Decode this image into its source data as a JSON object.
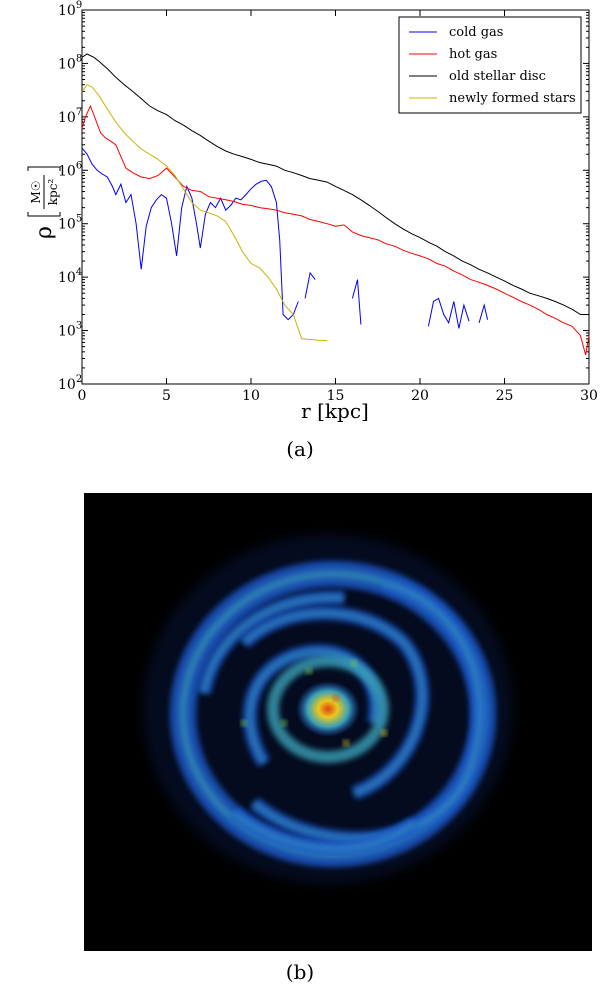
{
  "chart_data": {
    "type": "line",
    "xlabel": "r [kpc]",
    "ylabel_symbol": "ρ",
    "ylabel_unit_numerator": "M☉",
    "ylabel_unit_denominator": "kpc²",
    "xlim": [
      0,
      30
    ],
    "ylim_log10": [
      2,
      9
    ],
    "yscale": "log",
    "grid": false,
    "legend_position": "top-right",
    "x_ticks": [
      0,
      5,
      10,
      15,
      20,
      25,
      30
    ],
    "y_ticks": [
      {
        "base": "10",
        "exp": "2"
      },
      {
        "base": "10",
        "exp": "3"
      },
      {
        "base": "10",
        "exp": "4"
      },
      {
        "base": "10",
        "exp": "5"
      },
      {
        "base": "10",
        "exp": "6"
      },
      {
        "base": "10",
        "exp": "7"
      },
      {
        "base": "10",
        "exp": "8"
      },
      {
        "base": "10",
        "exp": "9"
      }
    ],
    "series": [
      {
        "name": "cold gas",
        "color": "#0000ff",
        "segments": [
          [
            [
              0,
              2600000.0
            ],
            [
              0.3,
              2000000.0
            ],
            [
              0.6,
              1300000.0
            ],
            [
              0.9,
              1000000.0
            ],
            [
              1.2,
              850000.0
            ],
            [
              1.5,
              750000.0
            ],
            [
              1.8,
              500000.0
            ],
            [
              2.0,
              350000.0
            ],
            [
              2.3,
              550000.0
            ],
            [
              2.6,
              250000.0
            ],
            [
              2.9,
              350000.0
            ],
            [
              3.2,
              100000.0
            ],
            [
              3.5,
              14000.0
            ],
            [
              3.8,
              90000.0
            ],
            [
              4.1,
              200000.0
            ],
            [
              4.4,
              280000.0
            ],
            [
              4.7,
              350000.0
            ],
            [
              5.0,
              300000.0
            ],
            [
              5.3,
              100000.0
            ],
            [
              5.6,
              25000.0
            ],
            [
              5.9,
              200000.0
            ],
            [
              6.2,
              500000.0
            ],
            [
              6.5,
              300000.0
            ],
            [
              6.8,
              90000.0
            ],
            [
              7.0,
              35000.0
            ],
            [
              7.3,
              150000.0
            ],
            [
              7.6,
              250000.0
            ],
            [
              7.9,
              200000.0
            ],
            [
              8.2,
              300000.0
            ],
            [
              8.5,
              180000.0
            ],
            [
              8.8,
              220000.0
            ],
            [
              9.1,
              300000.0
            ],
            [
              9.4,
              280000.0
            ],
            [
              9.7,
              350000.0
            ],
            [
              10.0,
              450000.0
            ],
            [
              10.3,
              550000.0
            ],
            [
              10.6,
              620000.0
            ],
            [
              10.9,
              650000.0
            ],
            [
              11.2,
              500000.0
            ],
            [
              11.5,
              250000.0
            ],
            [
              11.7,
              50000.0
            ],
            [
              11.9,
              2000.0
            ],
            [
              12.2,
              1600.0
            ],
            [
              12.5,
              2000.0
            ],
            [
              12.8,
              3500.0
            ]
          ],
          [
            [
              13.2,
              4000.0
            ],
            [
              13.5,
              12000.0
            ],
            [
              13.8,
              9000.0
            ]
          ],
          [
            [
              16.0,
              4000.0
            ],
            [
              16.3,
              9000.0
            ],
            [
              16.5,
              1300.0
            ]
          ],
          [
            [
              20.5,
              1200.0
            ],
            [
              20.8,
              3500.0
            ],
            [
              21.1,
              4000.0
            ],
            [
              21.4,
              2000.0
            ],
            [
              21.7,
              1400.0
            ],
            [
              22.0,
              3500.0
            ],
            [
              22.3,
              1100.0
            ],
            [
              22.6,
              3000.0
            ],
            [
              22.9,
              1500.0
            ]
          ],
          [
            [
              23.5,
              1400.0
            ],
            [
              23.8,
              3000.0
            ],
            [
              24.0,
              1600.0
            ]
          ]
        ]
      },
      {
        "name": "hot gas",
        "color": "#ff0000",
        "segments": [
          [
            [
              0,
              6000000.0
            ],
            [
              0.2,
              10000000.0
            ],
            [
              0.5,
              16000000.0
            ],
            [
              0.8,
              9000000.0
            ],
            [
              1.1,
              5000000.0
            ],
            [
              1.4,
              4000000.0
            ],
            [
              1.7,
              3500000.0
            ],
            [
              2.0,
              3000000.0
            ],
            [
              2.3,
              1800000.0
            ],
            [
              2.6,
              1100000.0
            ],
            [
              3.0,
              900000.0
            ],
            [
              3.5,
              750000.0
            ],
            [
              4.0,
              700000.0
            ],
            [
              4.5,
              800000.0
            ],
            [
              5.0,
              1100000.0
            ],
            [
              5.5,
              750000.0
            ],
            [
              6.0,
              500000.0
            ],
            [
              6.5,
              420000.0
            ],
            [
              7.0,
              400000.0
            ],
            [
              7.5,
              320000.0
            ],
            [
              8.0,
              300000.0
            ],
            [
              8.5,
              280000.0
            ],
            [
              9.0,
              260000.0
            ],
            [
              9.5,
              230000.0
            ],
            [
              10.0,
              220000.0
            ],
            [
              10.5,
              200000.0
            ],
            [
              11.0,
              190000.0
            ],
            [
              11.5,
              180000.0
            ],
            [
              12.0,
              160000.0
            ],
            [
              12.5,
              150000.0
            ],
            [
              13.0,
              140000.0
            ],
            [
              13.5,
              120000.0
            ],
            [
              14.0,
              110000.0
            ],
            [
              14.5,
              100000.0
            ],
            [
              15.0,
              90000.0
            ],
            [
              15.5,
              95000.0
            ],
            [
              16.0,
              70000.0
            ],
            [
              16.5,
              60000.0
            ],
            [
              17.0,
              55000.0
            ],
            [
              17.5,
              50000.0
            ],
            [
              18.0,
              42000.0
            ],
            [
              18.5,
              38000.0
            ],
            [
              19.0,
              32000.0
            ],
            [
              19.5,
              28000.0
            ],
            [
              20.0,
              25000.0
            ],
            [
              20.5,
              22000.0
            ],
            [
              21.0,
              18000.0
            ],
            [
              21.5,
              16000.0
            ],
            [
              22.0,
              13000.0
            ],
            [
              22.5,
              11000.0
            ],
            [
              23.0,
              9000.0
            ],
            [
              23.5,
              8000.0
            ],
            [
              24.0,
              7000.0
            ],
            [
              24.5,
              6000.0
            ],
            [
              25.0,
              5000.0
            ],
            [
              25.5,
              4200.0
            ],
            [
              26.0,
              3500.0
            ],
            [
              26.5,
              3000.0
            ],
            [
              27.0,
              2500.0
            ],
            [
              27.5,
              2000.0
            ],
            [
              28.0,
              1700.0
            ],
            [
              28.5,
              1400.0
            ],
            [
              29.0,
              1200.0
            ],
            [
              29.5,
              800.0
            ],
            [
              29.8,
              350.0
            ],
            [
              30.0,
              800.0
            ]
          ]
        ]
      },
      {
        "name": "old stellar disc",
        "color": "#000000",
        "segments": [
          [
            [
              0,
              130000000.0
            ],
            [
              0.3,
              150000000.0
            ],
            [
              0.7,
              130000000.0
            ],
            [
              1.0,
              110000000.0
            ],
            [
              1.5,
              80000000.0
            ],
            [
              2.0,
              55000000.0
            ],
            [
              2.5,
              40000000.0
            ],
            [
              3.0,
              30000000.0
            ],
            [
              3.5,
              22000000.0
            ],
            [
              4.0,
              16000000.0
            ],
            [
              4.5,
              13000000.0
            ],
            [
              5.0,
              11000000.0
            ],
            [
              5.5,
              8500000.0
            ],
            [
              6.0,
              7000000.0
            ],
            [
              6.5,
              5500000.0
            ],
            [
              7.0,
              4500000.0
            ],
            [
              7.5,
              3500000.0
            ],
            [
              8.0,
              2800000.0
            ],
            [
              8.5,
              2300000.0
            ],
            [
              9.0,
              2000000.0
            ],
            [
              9.5,
              1800000.0
            ],
            [
              10.0,
              1600000.0
            ],
            [
              10.5,
              1400000.0
            ],
            [
              11.0,
              1300000.0
            ],
            [
              11.5,
              1200000.0
            ],
            [
              12.0,
              1000000.0
            ],
            [
              12.5,
              900000.0
            ],
            [
              13.0,
              800000.0
            ],
            [
              13.5,
              700000.0
            ],
            [
              14.0,
              650000.0
            ],
            [
              14.5,
              600000.0
            ],
            [
              15.0,
              500000.0
            ],
            [
              15.5,
              420000.0
            ],
            [
              16.0,
              350000.0
            ],
            [
              16.5,
              280000.0
            ],
            [
              17.0,
              220000.0
            ],
            [
              17.5,
              170000.0
            ],
            [
              18.0,
              130000.0
            ],
            [
              18.5,
              100000.0
            ],
            [
              19.0,
              80000.0
            ],
            [
              19.5,
              65000.0
            ],
            [
              20.0,
              55000.0
            ],
            [
              20.5,
              45000.0
            ],
            [
              21.0,
              38000.0
            ],
            [
              21.5,
              30000.0
            ],
            [
              22.0,
              25000.0
            ],
            [
              22.5,
              20000.0
            ],
            [
              23.0,
              17000.0
            ],
            [
              23.5,
              14000.0
            ],
            [
              24.0,
              12000.0
            ],
            [
              24.5,
              10000.0
            ],
            [
              25.0,
              8500.0
            ],
            [
              25.5,
              7000.0
            ],
            [
              26.0,
              6000.0
            ],
            [
              26.5,
              5000.0
            ],
            [
              27.0,
              4500.0
            ],
            [
              27.5,
              4000.0
            ],
            [
              28.0,
              3500.0
            ],
            [
              28.5,
              3000.0
            ],
            [
              29.0,
              2500.0
            ],
            [
              29.5,
              2000.0
            ],
            [
              30.0,
              2000.0
            ]
          ]
        ]
      },
      {
        "name": "newly formed stars",
        "color": "#c8b400",
        "segments": [
          [
            [
              0,
              30000000.0
            ],
            [
              0.3,
              40000000.0
            ],
            [
              0.6,
              36000000.0
            ],
            [
              1.0,
              25000000.0
            ],
            [
              1.5,
              14000000.0
            ],
            [
              2.0,
              8000000.0
            ],
            [
              2.5,
              5000000.0
            ],
            [
              3.0,
              3500000.0
            ],
            [
              3.5,
              2500000.0
            ],
            [
              4.0,
              2000000.0
            ],
            [
              4.5,
              1600000.0
            ],
            [
              5.0,
              1200000.0
            ],
            [
              5.5,
              800000.0
            ],
            [
              6.0,
              450000.0
            ],
            [
              6.5,
              250000.0
            ],
            [
              7.0,
              180000.0
            ],
            [
              7.5,
              160000.0
            ],
            [
              8.0,
              140000.0
            ],
            [
              8.5,
              110000.0
            ],
            [
              9.0,
              60000.0
            ],
            [
              9.5,
              30000.0
            ],
            [
              10.0,
              18000.0
            ],
            [
              10.5,
              15000.0
            ],
            [
              11.0,
              10000.0
            ],
            [
              11.5,
              6000.0
            ],
            [
              12.0,
              3000.0
            ],
            [
              12.5,
              2000.0
            ],
            [
              13.0,
              700.0
            ],
            [
              13.5,
              680.0
            ],
            [
              14.0,
              660.0
            ],
            [
              14.5,
              650.0
            ]
          ]
        ]
      }
    ]
  },
  "captions": {
    "a": "(a)",
    "b": "(b)"
  },
  "disc_image": {
    "background_color": "#000000",
    "colormap": [
      "#10205a",
      "#1e58c8",
      "#3aa0b8",
      "#7acc50",
      "#e8c820",
      "#e04010"
    ]
  }
}
